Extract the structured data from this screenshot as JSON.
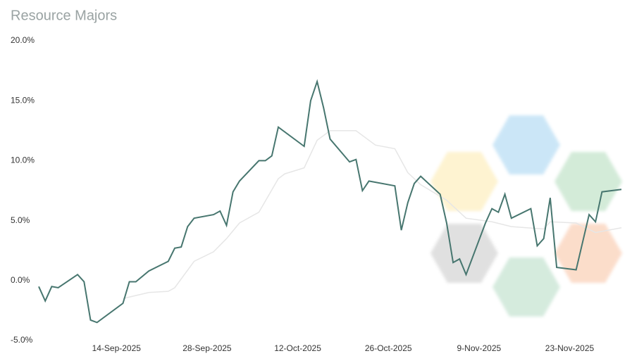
{
  "chart_data": {
    "type": "line",
    "title": "Resource Majors",
    "xlim": [
      "2-Sep-2025",
      "1-Dec-2025"
    ],
    "xticks": [
      "14-Sep-2025",
      "28-Sep-2025",
      "12-Oct-2025",
      "26-Oct-2025",
      "9-Nov-2025",
      "23-Nov-2025"
    ],
    "ylim": [
      -5,
      20
    ],
    "yticks": [
      {
        "value": -5,
        "label": "-5.0%"
      },
      {
        "value": 0,
        "label": "0.0%"
      },
      {
        "value": 5,
        "label": "5.0%"
      },
      {
        "value": 10,
        "label": "10.0%"
      },
      {
        "value": 15,
        "label": "15.0%"
      },
      {
        "value": 20,
        "label": "20.0%"
      }
    ],
    "grid": false,
    "series": [
      {
        "color": "#e6e6e6",
        "x": [
          "15-Sep-2025",
          "19-Sep-2025",
          "22-Sep-2025",
          "23-Sep-2025",
          "26-Sep-2025",
          "29-Sep-2025",
          "1-Oct-2025",
          "3-Oct-2025",
          "6-Oct-2025",
          "9-Oct-2025",
          "10-Oct-2025",
          "13-Oct-2025",
          "15-Oct-2025",
          "17-Oct-2025",
          "21-Oct-2025",
          "24-Oct-2025",
          "27-Oct-2025",
          "29-Oct-2025",
          "31-Oct-2025",
          "4-Nov-2025",
          "7-Nov-2025",
          "11-Nov-2025",
          "14-Nov-2025",
          "19-Nov-2025",
          "20-Nov-2025",
          "24-Nov-2025",
          "27-Nov-2025",
          "1-Dec-2025"
        ],
        "values": [
          -1.5,
          -1.0,
          -0.9,
          -0.6,
          1.6,
          2.4,
          3.5,
          4.8,
          5.7,
          8.5,
          8.9,
          9.4,
          11.7,
          12.5,
          12.5,
          11.3,
          11.0,
          9.0,
          8.0,
          6.7,
          5.2,
          4.9,
          4.5,
          4.3,
          4.9,
          4.8,
          4.0,
          4.4
        ]
      },
      {
        "color": "#47766f",
        "x": [
          "2-Sep-2025",
          "3-Sep-2025",
          "4-Sep-2025",
          "5-Sep-2025",
          "8-Sep-2025",
          "9-Sep-2025",
          "10-Sep-2025",
          "11-Sep-2025",
          "15-Sep-2025",
          "16-Sep-2025",
          "17-Sep-2025",
          "19-Sep-2025",
          "22-Sep-2025",
          "23-Sep-2025",
          "24-Sep-2025",
          "25-Sep-2025",
          "26-Sep-2025",
          "29-Sep-2025",
          "30-Sep-2025",
          "1-Oct-2025",
          "2-Oct-2025",
          "3-Oct-2025",
          "6-Oct-2025",
          "7-Oct-2025",
          "8-Oct-2025",
          "9-Oct-2025",
          "13-Oct-2025",
          "14-Oct-2025",
          "15-Oct-2025",
          "16-Oct-2025",
          "17-Oct-2025",
          "20-Oct-2025",
          "21-Oct-2025",
          "22-Oct-2025",
          "23-Oct-2025",
          "27-Oct-2025",
          "28-Oct-2025",
          "29-Oct-2025",
          "30-Oct-2025",
          "31-Oct-2025",
          "3-Nov-2025",
          "4-Nov-2025",
          "5-Nov-2025",
          "6-Nov-2025",
          "7-Nov-2025",
          "10-Nov-2025",
          "11-Nov-2025",
          "12-Nov-2025",
          "13-Nov-2025",
          "14-Nov-2025",
          "17-Nov-2025",
          "18-Nov-2025",
          "19-Nov-2025",
          "20-Nov-2025",
          "21-Nov-2025",
          "24-Nov-2025",
          "25-Nov-2025",
          "26-Nov-2025",
          "27-Nov-2025",
          "28-Nov-2025",
          "1-Dec-2025"
        ],
        "values": [
          -0.5,
          -1.7,
          -0.5,
          -0.6,
          0.5,
          -0.1,
          -3.3,
          -3.5,
          -1.9,
          -0.1,
          -0.1,
          0.8,
          1.6,
          2.7,
          2.8,
          4.5,
          5.2,
          5.5,
          5.8,
          4.6,
          7.4,
          8.3,
          10.0,
          10.0,
          10.4,
          12.8,
          11.2,
          15.0,
          16.6,
          14.4,
          11.8,
          9.9,
          10.1,
          7.5,
          8.3,
          7.9,
          4.2,
          6.5,
          8.1,
          8.7,
          7.2,
          4.8,
          1.5,
          1.8,
          0.5,
          4.8,
          6.0,
          5.7,
          7.2,
          5.2,
          6.0,
          2.9,
          3.5,
          6.9,
          1.1,
          0.9,
          3.2,
          5.5,
          4.9,
          7.4,
          7.6
        ]
      }
    ]
  }
}
